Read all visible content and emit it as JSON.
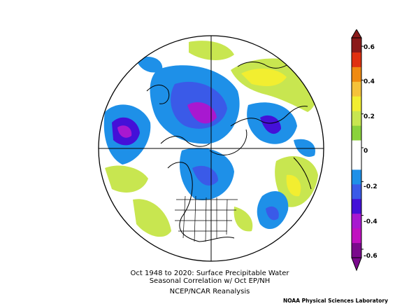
{
  "title": {
    "line1": "Oct 1948 to 2020: Surface Precipitable Water",
    "line2": "Seasonal Correlation w/ Oct EP/NH",
    "line3": "NCEP/NCAR Reanalysis"
  },
  "credit": "NOAA Physical Sciences Laboratory",
  "colorbar": {
    "labels": [
      "0.6",
      "0.4",
      "0.2",
      "0",
      "-0.2",
      "-0.4",
      "-0.6"
    ],
    "colors": [
      "#8b1a1a",
      "#e03010",
      "#f08a10",
      "#f5c23a",
      "#f2ee30",
      "#c8e650",
      "#8ad23c",
      "#ffffff",
      "#ffffff",
      "#1e90e8",
      "#3a5ae8",
      "#4410d8",
      "#a818d0",
      "#c010c0",
      "#7a0a8c"
    ]
  },
  "map": {
    "projection": "north-polar-stereographic",
    "field": "correlation"
  }
}
